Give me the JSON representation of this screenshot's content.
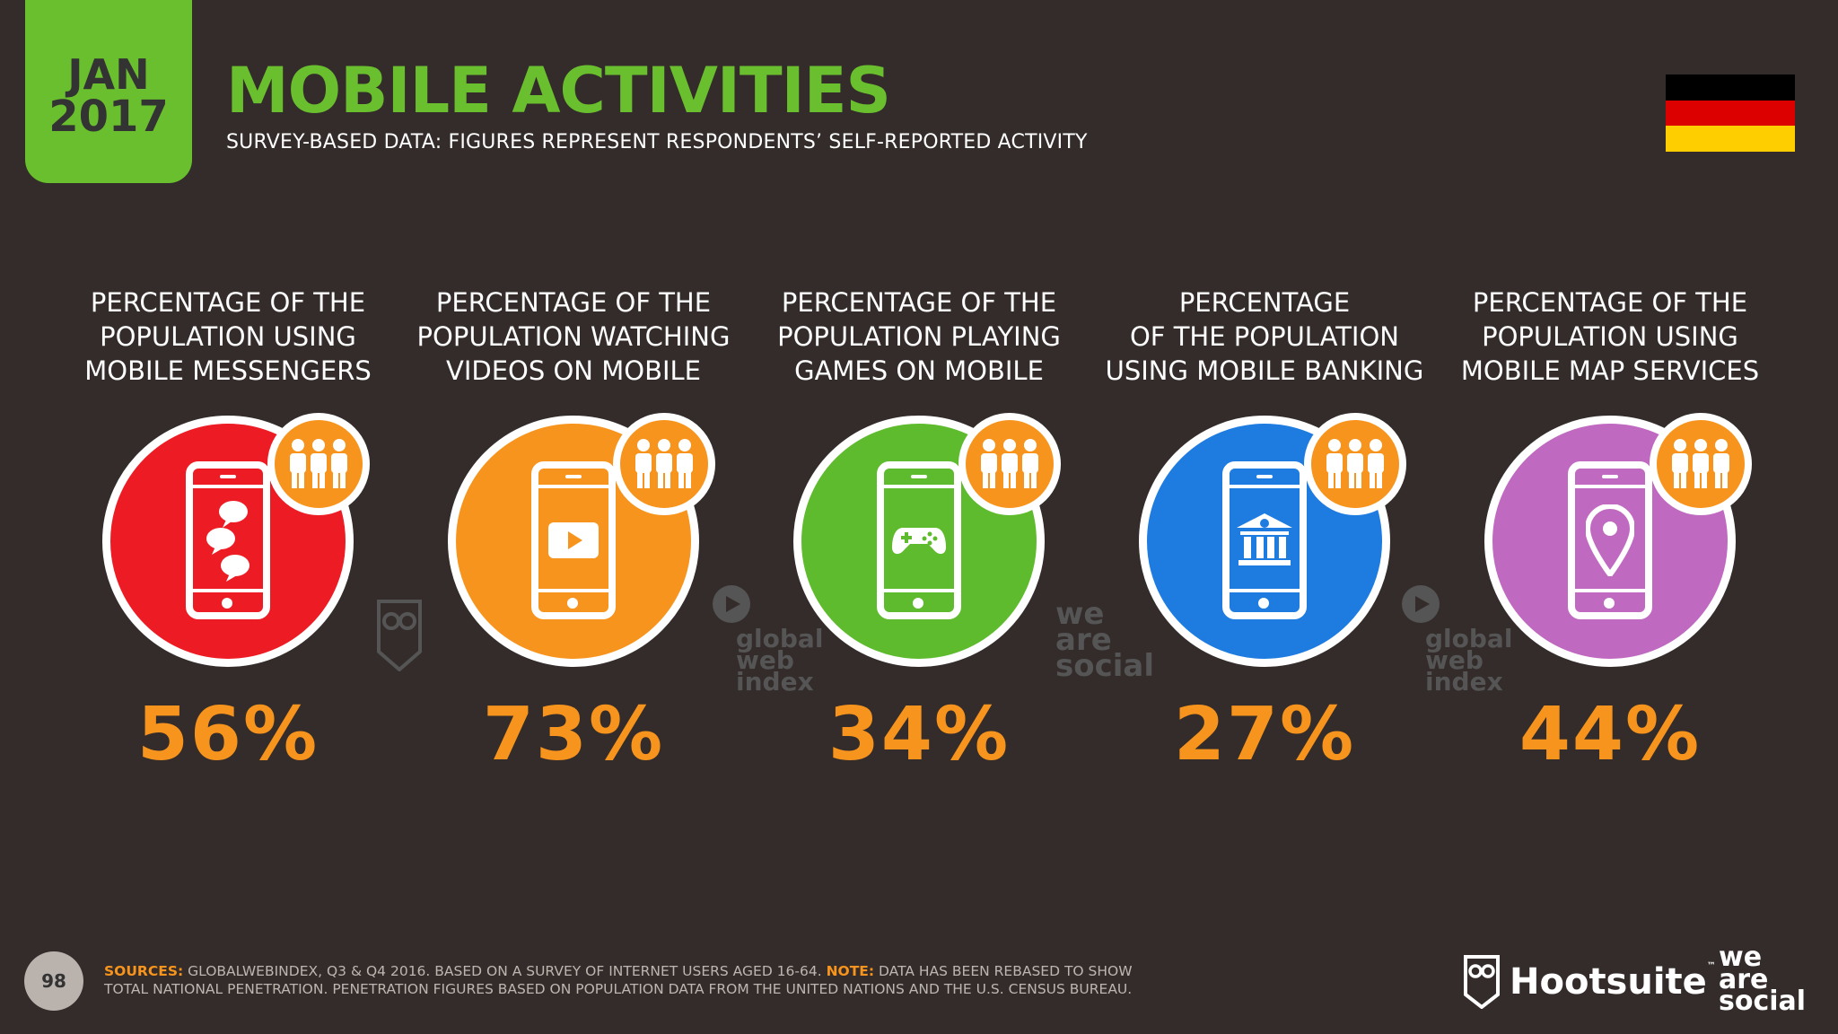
{
  "header": {
    "month": "JAN",
    "year": "2017",
    "title": "MOBILE ACTIVITIES",
    "subtitle": "SURVEY-BASED DATA: FIGURES REPRESENT RESPONDENTS’ SELF-REPORTED ACTIVITY",
    "flag_colors": [
      "#000000",
      "#dd0000",
      "#ffce00"
    ]
  },
  "stats": [
    {
      "label_lines": [
        "PERCENTAGE OF THE",
        "POPULATION USING",
        "MOBILE MESSENGERS"
      ],
      "value": "56%",
      "color": "#ed1c24",
      "icon": "chat-bubbles-icon"
    },
    {
      "label_lines": [
        "PERCENTAGE OF THE",
        "POPULATION WATCHING",
        "VIDEOS ON MOBILE"
      ],
      "value": "73%",
      "color": "#f7941d",
      "icon": "play-button-icon"
    },
    {
      "label_lines": [
        "PERCENTAGE OF THE",
        "POPULATION PLAYING",
        "GAMES ON MOBILE"
      ],
      "value": "34%",
      "color": "#5fbb2e",
      "icon": "gamepad-icon"
    },
    {
      "label_lines": [
        "PERCENTAGE",
        "OF THE POPULATION",
        "USING MOBILE BANKING"
      ],
      "value": "27%",
      "color": "#1e7be0",
      "icon": "bank-icon"
    },
    {
      "label_lines": [
        "PERCENTAGE OF THE",
        "POPULATION USING",
        "MOBILE MAP SERVICES"
      ],
      "value": "44%",
      "color": "#c069c0",
      "icon": "map-pin-icon"
    }
  ],
  "watermarks": {
    "gwi_lines": [
      "global",
      "web",
      "index"
    ],
    "was_lines": [
      "we",
      "are",
      "social"
    ]
  },
  "footer": {
    "page_number": "98",
    "sources_label": "SOURCES:",
    "sources_text": " GLOBALWEBINDEX, Q3 & Q4 2016. BASED ON A SURVEY OF INTERNET USERS AGED 16-64. ",
    "note_label": "NOTE:",
    "note_text": " DATA HAS BEEN REBASED TO SHOW TOTAL NATIONAL PENETRATION. PENETRATION FIGURES BASED ON POPULATION DATA FROM THE UNITED NATIONS AND THE U.S. CENSUS BUREAU.",
    "hootsuite": "Hootsuite",
    "tm": "™",
    "was_lines": [
      "we",
      "are",
      "social"
    ]
  }
}
